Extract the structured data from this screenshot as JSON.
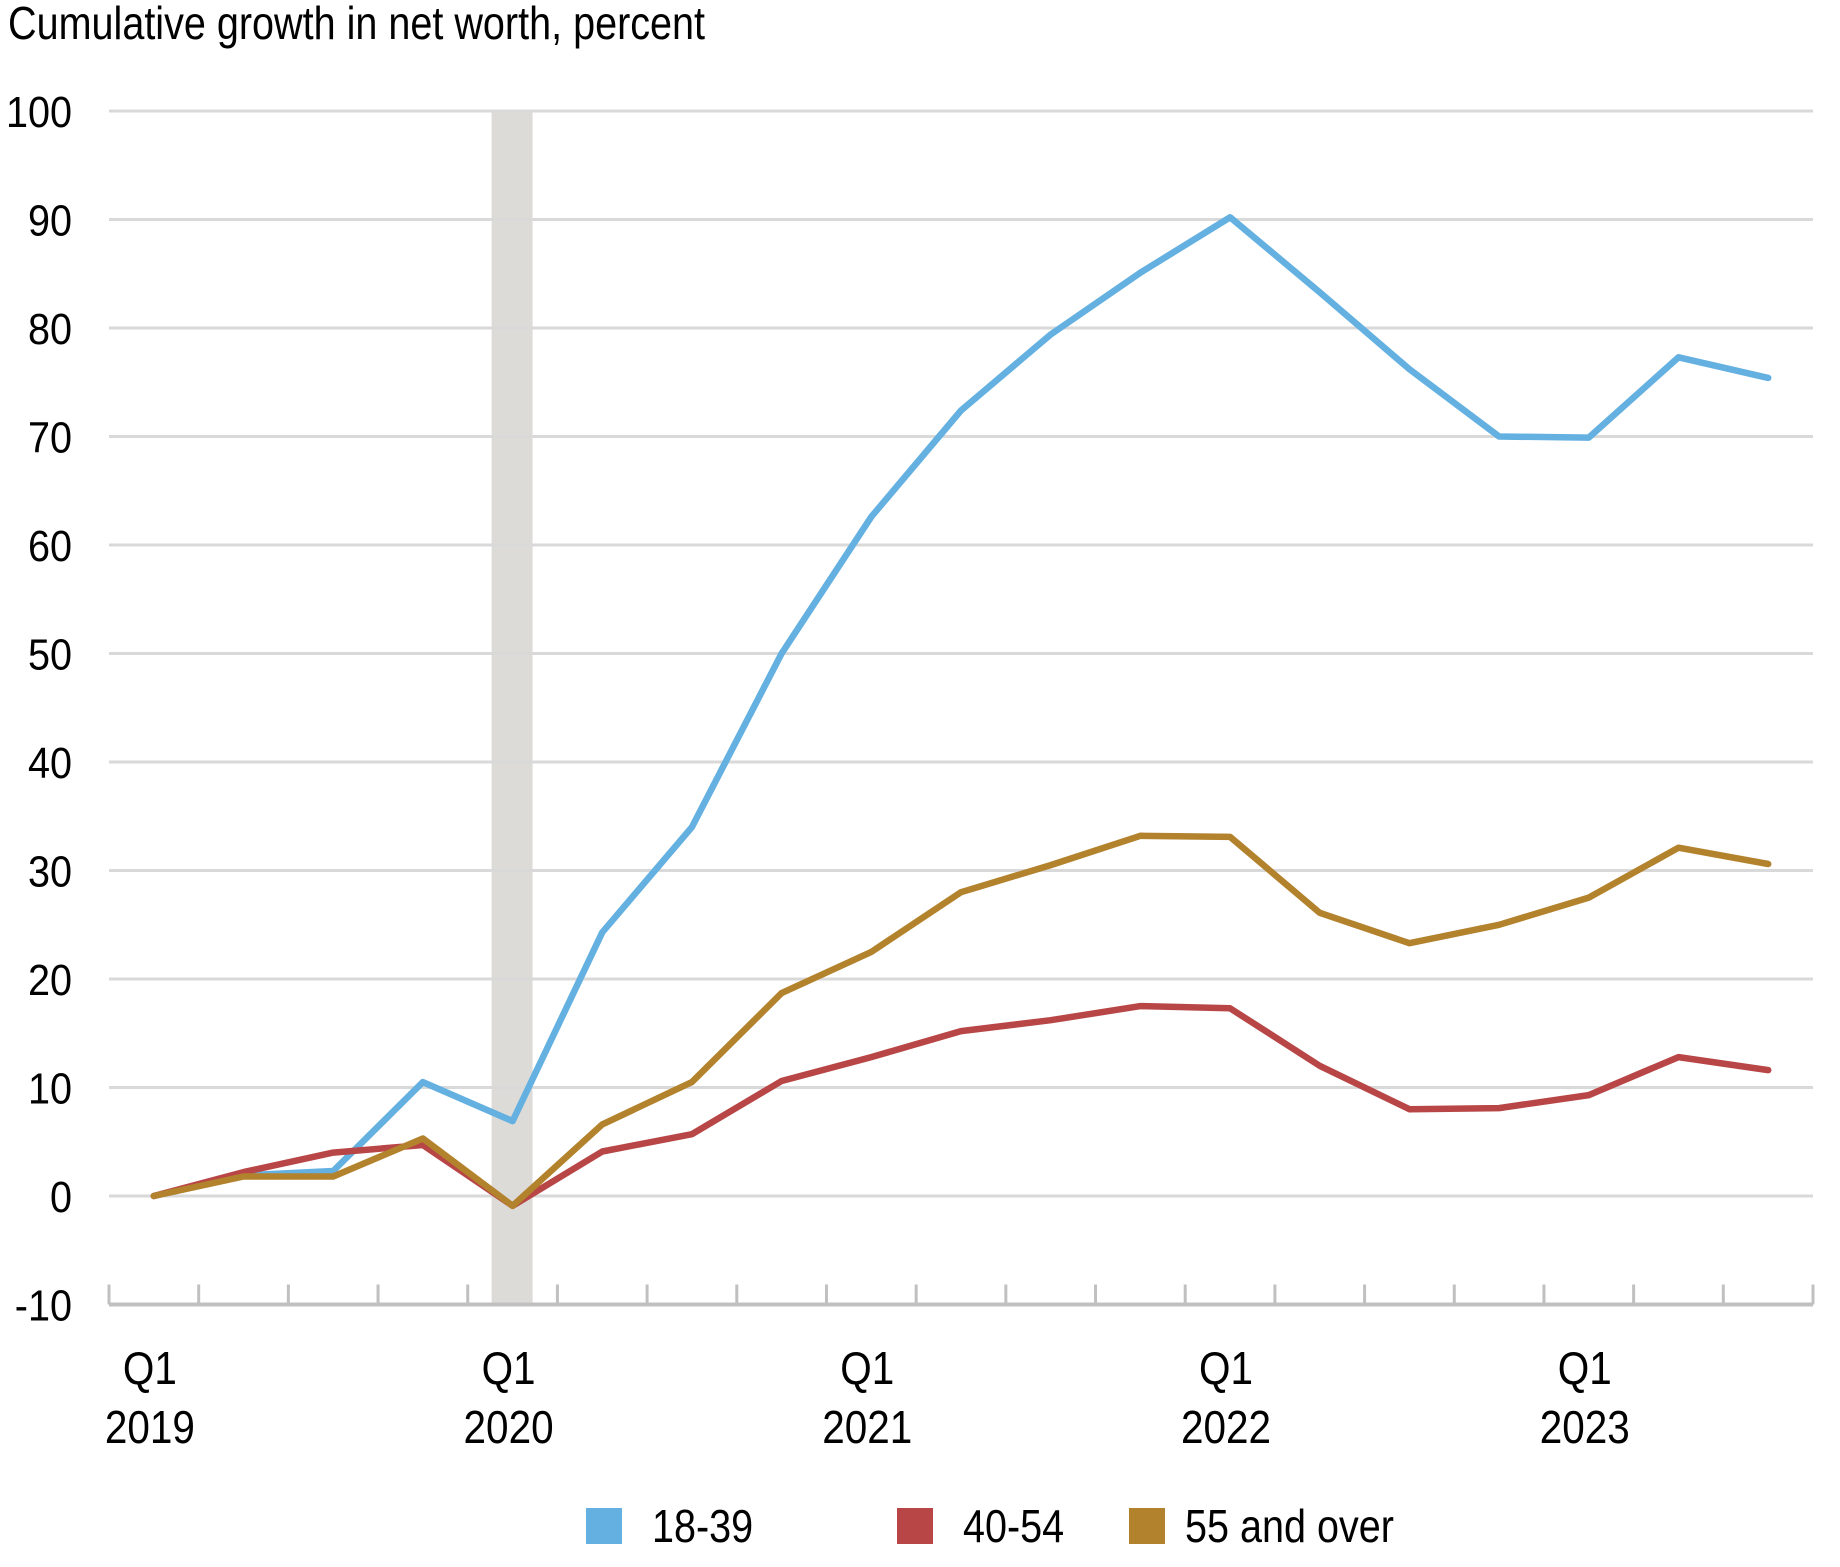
{
  "chart_data": {
    "type": "line",
    "title": "Cumulative growth in net worth, percent",
    "xlabel": "",
    "ylabel": "Cumulative growth in net worth, percent",
    "ylim": [
      -10,
      100
    ],
    "yticks": [
      -10,
      0,
      10,
      20,
      30,
      40,
      50,
      60,
      70,
      80,
      90,
      100
    ],
    "grid": true,
    "legend_position": "bottom",
    "categories": [
      "2019 Q1",
      "2019 Q2",
      "2019 Q3",
      "2019 Q4",
      "2020 Q1",
      "2020 Q2",
      "2020 Q3",
      "2020 Q4",
      "2021 Q1",
      "2021 Q2",
      "2021 Q3",
      "2021 Q4",
      "2022 Q1",
      "2022 Q2",
      "2022 Q3",
      "2022 Q4",
      "2023 Q1",
      "2023 Q2",
      "2023 Q3"
    ],
    "x_tick_labels": [
      {
        "q": "Q1",
        "year": "2019",
        "index": 0
      },
      {
        "q": "Q1",
        "year": "2020",
        "index": 4
      },
      {
        "q": "Q1",
        "year": "2021",
        "index": 8
      },
      {
        "q": "Q1",
        "year": "2022",
        "index": 12
      },
      {
        "q": "Q1",
        "year": "2023",
        "index": 16
      }
    ],
    "shaded_regions": [
      {
        "label": "recession",
        "start_index": 4,
        "end_index": 4,
        "color": "#dcdbd8"
      }
    ],
    "series": [
      {
        "name": "18-39",
        "color": "#63b0e1",
        "values": [
          0,
          1.9,
          2.3,
          10.5,
          6.9,
          24.3,
          34.0,
          50.0,
          62.6,
          72.4,
          79.4,
          85.1,
          90.2,
          83.3,
          76.2,
          70.0,
          69.9,
          77.3,
          75.4
        ]
      },
      {
        "name": "40-54",
        "color": "#b94646",
        "values": [
          0,
          2.2,
          4.0,
          4.7,
          -0.9,
          4.1,
          5.7,
          10.6,
          12.8,
          15.2,
          16.2,
          17.5,
          17.3,
          12.0,
          8.0,
          8.1,
          9.3,
          12.8,
          11.6
        ]
      },
      {
        "name": "55 and over",
        "color": "#b3822c",
        "values": [
          0,
          1.8,
          1.8,
          5.3,
          -0.9,
          6.6,
          10.5,
          18.7,
          22.5,
          28.0,
          30.5,
          33.2,
          33.1,
          26.1,
          23.3,
          25.0,
          27.5,
          32.1,
          30.6
        ]
      }
    ]
  },
  "legend": {
    "items": [
      {
        "label": "18-39",
        "color": "#63b0e1"
      },
      {
        "label": "40-54",
        "color": "#b94646"
      },
      {
        "label": "55 and over",
        "color": "#b3822c"
      }
    ]
  },
  "style": {
    "gridline_color": "#d9d9d9",
    "axis_color": "#c0c0c0",
    "recession_color": "#dcdbd8"
  }
}
